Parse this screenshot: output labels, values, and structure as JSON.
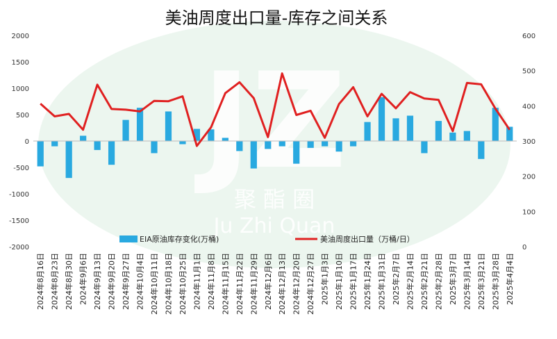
{
  "chart_data": {
    "type": "bar+line",
    "title": "美油周度出口量-库存之间关系",
    "watermark": {
      "logo_letters": "JZ",
      "chinese": "聚 酯 圈",
      "english": "Ju Zhi Quan"
    },
    "categories": [
      "2024年8月16日",
      "2024年8月23日",
      "2024年8月30日",
      "2024年9月6日",
      "2024年9月13日",
      "2024年9月20日",
      "2024年9月27日",
      "2024年10月4日",
      "2024年10月11日",
      "2024年10月18日",
      "2024年10月25日",
      "2024年11月1日",
      "2024年11月8日",
      "2024年11月15日",
      "2024年11月22日",
      "2024年11月29日",
      "2024年12月6日",
      "2024年12月13日",
      "2024年12月20日",
      "2024年12月27日",
      "2025年1月3日",
      "2025年1月10日",
      "2025年1月17日",
      "2025年1月24日",
      "2025年1月31日",
      "2025年2月7日",
      "2025年2月14日",
      "2025年2月21日",
      "2025年2月28日",
      "2025年3月7日",
      "2025年3月14日",
      "2025年3月21日",
      "2025年3月28日",
      "2025年4月4日"
    ],
    "series": [
      {
        "name": "EIA原油库存变化(万桶)",
        "kind": "bar",
        "axis": "left",
        "color": "#29a9e0",
        "values": [
          -480,
          -100,
          -700,
          100,
          -170,
          -450,
          400,
          630,
          -230,
          560,
          -60,
          230,
          220,
          60,
          -190,
          -520,
          -150,
          -100,
          -430,
          -130,
          -100,
          -200,
          -100,
          360,
          830,
          430,
          480,
          -230,
          380,
          160,
          190,
          -340,
          630,
          270
        ]
      },
      {
        "name": "美油周度出口量（万桶/日）",
        "kind": "line",
        "axis": "right",
        "color": "#e02020",
        "values": [
          406,
          370,
          377,
          332,
          460,
          391,
          389,
          384,
          414,
          413,
          427,
          286,
          339,
          436,
          467,
          422,
          311,
          492,
          374,
          386,
          309,
          405,
          453,
          370,
          434,
          393,
          439,
          421,
          417,
          328,
          465,
          461,
          392,
          332
        ]
      }
    ],
    "y_left": {
      "min": -2000,
      "max": 2000,
      "step": 500
    },
    "y_right": {
      "min": 0,
      "max": 600,
      "step": 100
    },
    "legend_position": "bottom",
    "grid": false
  }
}
